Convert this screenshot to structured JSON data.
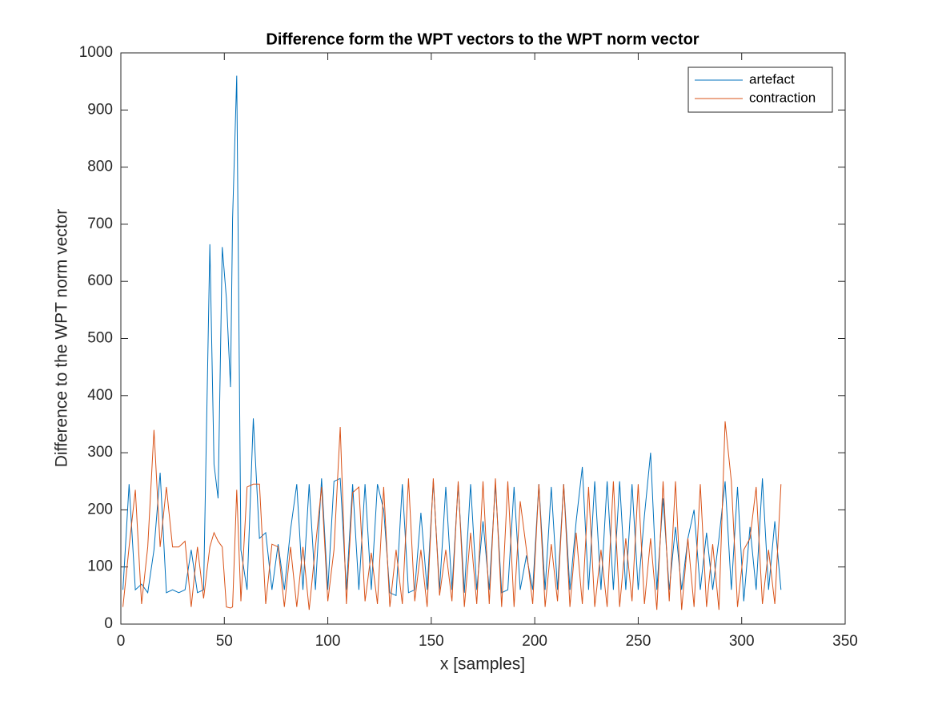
{
  "chart_data": {
    "type": "line",
    "title": "Difference form the WPT vectors to the WPT norm vector",
    "x_label": "x [samples]",
    "y_label": "Difference to the WPT norm vector",
    "xlim": [
      0,
      350
    ],
    "ylim": [
      0,
      1000
    ],
    "xticks": [
      0,
      50,
      100,
      150,
      200,
      250,
      300,
      350
    ],
    "yticks": [
      0,
      100,
      200,
      300,
      400,
      500,
      600,
      700,
      800,
      900,
      1000
    ],
    "legend": "upper right",
    "x": [
      1,
      4,
      7,
      10,
      13,
      16,
      19,
      22,
      25,
      28,
      31,
      34,
      37,
      40,
      43,
      45,
      47,
      49,
      51,
      53,
      54,
      56,
      58,
      61,
      64,
      67,
      70,
      73,
      76,
      79,
      82,
      85,
      88,
      91,
      94,
      97,
      100,
      103,
      106,
      109,
      112,
      115,
      118,
      121,
      124,
      127,
      130,
      133,
      136,
      139,
      142,
      145,
      148,
      151,
      154,
      157,
      160,
      163,
      166,
      169,
      172,
      175,
      178,
      181,
      184,
      187,
      190,
      193,
      196,
      199,
      202,
      205,
      208,
      211,
      214,
      217,
      220,
      223,
      226,
      229,
      232,
      235,
      238,
      241,
      244,
      247,
      250,
      253,
      256,
      259,
      262,
      265,
      268,
      271,
      274,
      277,
      280,
      283,
      286,
      289,
      292,
      295,
      298,
      301,
      304,
      307,
      310,
      313,
      316,
      319
    ],
    "series": [
      {
        "name": "artefact",
        "color": "#0072bd",
        "values": [
          60,
          245,
          60,
          70,
          55,
          130,
          265,
          55,
          60,
          55,
          60,
          130,
          55,
          60,
          665,
          280,
          220,
          660,
          570,
          415,
          710,
          960,
          130,
          60,
          360,
          150,
          160,
          60,
          140,
          60,
          165,
          245,
          60,
          245,
          60,
          255,
          60,
          250,
          255,
          60,
          245,
          60,
          245,
          60,
          245,
          200,
          55,
          50,
          245,
          55,
          60,
          195,
          60,
          250,
          60,
          240,
          60,
          245,
          55,
          245,
          60,
          180,
          60,
          245,
          55,
          60,
          240,
          60,
          120,
          60,
          245,
          60,
          240,
          60,
          245,
          60,
          180,
          275,
          60,
          250,
          60,
          250,
          60,
          250,
          60,
          245,
          60,
          190,
          300,
          60,
          220,
          60,
          170,
          60,
          150,
          200,
          60,
          160,
          60,
          150,
          250,
          60,
          240,
          40,
          170,
          60,
          255,
          60,
          180,
          60
        ]
      },
      {
        "name": "contraction",
        "color": "#d95319",
        "values": [
          30,
          135,
          235,
          35,
          135,
          340,
          135,
          240,
          135,
          135,
          145,
          30,
          135,
          45,
          135,
          160,
          145,
          135,
          30,
          28,
          30,
          235,
          40,
          240,
          245,
          245,
          35,
          140,
          135,
          30,
          135,
          30,
          135,
          25,
          135,
          240,
          40,
          130,
          345,
          35,
          230,
          240,
          40,
          125,
          35,
          240,
          30,
          130,
          35,
          255,
          40,
          130,
          30,
          255,
          50,
          130,
          40,
          250,
          30,
          160,
          35,
          250,
          35,
          255,
          30,
          250,
          30,
          215,
          130,
          35,
          245,
          30,
          140,
          40,
          245,
          30,
          160,
          35,
          240,
          30,
          130,
          30,
          250,
          30,
          150,
          40,
          245,
          35,
          150,
          25,
          250,
          40,
          250,
          25,
          150,
          30,
          245,
          30,
          140,
          25,
          355,
          250,
          30,
          130,
          150,
          240,
          35,
          130,
          35,
          245
        ]
      }
    ]
  }
}
